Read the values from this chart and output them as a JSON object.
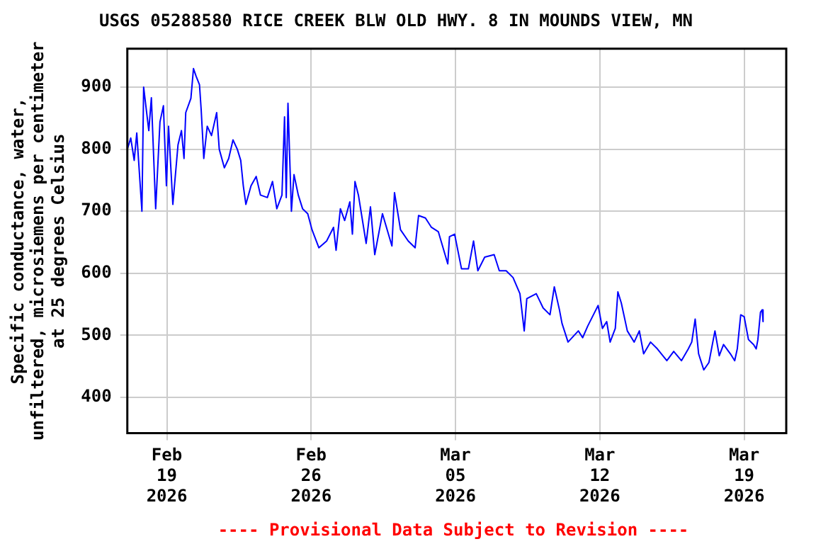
{
  "chart_data": {
    "type": "line",
    "title": "USGS 05288580 RICE CREEK BLW OLD HWY. 8 IN MOUNDS VIEW, MN",
    "ylabel": "Specific conductance, water,\nunfiltered, microsiemens per centimeter\nat 25 degrees Celsius",
    "annotations": [
      "---- Provisional Data Subject to Revision ----"
    ],
    "x": [
      "2026-02-17T02:00",
      "2026-02-17T06:00",
      "2026-02-17T10:00",
      "2026-02-17T13:00",
      "2026-02-17T19:00",
      "2026-02-17T21:00",
      "2026-02-18T03:00",
      "2026-02-18T06:00",
      "2026-02-18T11:00",
      "2026-02-18T16:00",
      "2026-02-18T20:00",
      "2026-02-18T23:30",
      "2026-02-19T02:00",
      "2026-02-19T07:00",
      "2026-02-19T13:00",
      "2026-02-19T17:00",
      "2026-02-19T20:00",
      "2026-02-19T22:00",
      "2026-02-20T04:00",
      "2026-02-20T07:00",
      "2026-02-20T10:00",
      "2026-02-20T14:00",
      "2026-02-20T16:00",
      "2026-02-20T19:00",
      "2026-02-20T23:00",
      "2026-02-21T04:00",
      "2026-02-21T10:00",
      "2026-02-21T13:00",
      "2026-02-21T19:00",
      "2026-02-22T00:00",
      "2026-02-22T05:00",
      "2026-02-22T10:00",
      "2026-02-22T14:00",
      "2026-02-22T17:00",
      "2026-02-22T20:00",
      "2026-02-23T02:00",
      "2026-02-23T08:00",
      "2026-02-23T13:00",
      "2026-02-23T21:00",
      "2026-02-24T03:00",
      "2026-02-24T08:00",
      "2026-02-24T14:00",
      "2026-02-24T17:00",
      "2026-02-24T19:00",
      "2026-02-24T21:00",
      "2026-02-25T01:00",
      "2026-02-25T04:00",
      "2026-02-25T09:00",
      "2026-02-25T14:00",
      "2026-02-25T20:00",
      "2026-02-26T01:00",
      "2026-02-26T09:00",
      "2026-02-26T18:00",
      "2026-02-27T02:00",
      "2026-02-27T05:00",
      "2026-02-27T10:00",
      "2026-02-27T15:00",
      "2026-02-27T21:00",
      "2026-02-28T00:00",
      "2026-02-28T03:00",
      "2026-02-28T07:00",
      "2026-02-28T16:00",
      "2026-02-28T21:00",
      "2026-03-01T02:00",
      "2026-03-01T11:00",
      "2026-03-01T22:00",
      "2026-03-02T01:00",
      "2026-03-02T08:00",
      "2026-03-02T17:00",
      "2026-03-03T01:00",
      "2026-03-03T05:00",
      "2026-03-03T13:00",
      "2026-03-03T20:00",
      "2026-03-04T04:00",
      "2026-03-04T15:00",
      "2026-03-04T17:00",
      "2026-03-04T23:00",
      "2026-03-05T07:00",
      "2026-03-05T15:00",
      "2026-03-05T21:00",
      "2026-03-06T02:00",
      "2026-03-06T10:00",
      "2026-03-06T21:00",
      "2026-03-07T03:00",
      "2026-03-07T11:00",
      "2026-03-07T19:00",
      "2026-03-08T03:00",
      "2026-03-08T08:00",
      "2026-03-08T11:00",
      "2026-03-08T22:00",
      "2026-03-09T06:00",
      "2026-03-09T14:00",
      "2026-03-09T19:00",
      "2026-03-10T01:00",
      "2026-03-10T04:00",
      "2026-03-10T11:00",
      "2026-03-10T23:00",
      "2026-03-11T04:00",
      "2026-03-11T10:00",
      "2026-03-11T18:00",
      "2026-03-11T22:00",
      "2026-03-12T03:00",
      "2026-03-12T08:00",
      "2026-03-12T12:00",
      "2026-03-12T18:00",
      "2026-03-12T21:00",
      "2026-03-13T01:00",
      "2026-03-13T08:00",
      "2026-03-13T16:00",
      "2026-03-13T22:00",
      "2026-03-14T03:00",
      "2026-03-14T11:00",
      "2026-03-14T19:00",
      "2026-03-15T06:00",
      "2026-03-15T14:00",
      "2026-03-15T23:00",
      "2026-03-16T07:00",
      "2026-03-16T11:00",
      "2026-03-16T15:00",
      "2026-03-16T19:00",
      "2026-03-17T01:00",
      "2026-03-17T07:00",
      "2026-03-17T14:00",
      "2026-03-17T19:00",
      "2026-03-18T00:00",
      "2026-03-18T08:00",
      "2026-03-18T13:00",
      "2026-03-18T16:00",
      "2026-03-18T20:00",
      "2026-03-19T00:00",
      "2026-03-19T05:00",
      "2026-03-19T11:00",
      "2026-03-19T14:00",
      "2026-03-19T16:00",
      "2026-03-19T19:00",
      "2026-03-19T21:00",
      "2026-03-19T22:00"
    ],
    "series": [
      {
        "color": "#0000ff",
        "values": [
          800,
          818,
          782,
          826,
          700,
          900,
          830,
          883,
          704,
          844,
          870,
          741,
          837,
          711,
          807,
          830,
          785,
          859,
          882,
          930,
          918,
          904,
          863,
          785,
          837,
          822,
          859,
          800,
          770,
          785,
          815,
          800,
          782,
          741,
          711,
          741,
          756,
          726,
          722,
          748,
          704,
          726,
          852,
          722,
          874,
          700,
          759,
          726,
          704,
          696,
          670,
          641,
          652,
          674,
          637,
          704,
          685,
          715,
          663,
          748,
          726,
          648,
          707,
          630,
          696,
          644,
          730,
          670,
          652,
          641,
          693,
          689,
          674,
          667,
          615,
          659,
          663,
          607,
          607,
          652,
          604,
          626,
          630,
          604,
          604,
          593,
          567,
          507,
          559,
          567,
          544,
          533,
          578,
          541,
          519,
          489,
          507,
          496,
          515,
          537,
          548,
          511,
          522,
          489,
          511,
          570,
          552,
          507,
          489,
          507,
          470,
          489,
          478,
          459,
          474,
          459,
          478,
          489,
          526,
          470,
          444,
          456,
          507,
          467,
          485,
          470,
          459,
          478,
          533,
          530,
          493,
          485,
          478,
          493,
          537,
          541,
          522
        ]
      }
    ],
    "xlim": [
      "2026-02-17T02:00",
      "2026-03-21T01:00"
    ],
    "xticks": [
      {
        "value": "2026-02-19",
        "label": "Feb\n19\n2026"
      },
      {
        "value": "2026-02-26",
        "label": "Feb\n26\n2026"
      },
      {
        "value": "2026-03-05",
        "label": "Mar\n05\n2026"
      },
      {
        "value": "2026-03-12",
        "label": "Mar\n12\n2026"
      },
      {
        "value": "2026-03-19",
        "label": "Mar\n19\n2026"
      }
    ],
    "ylim": [
      342,
      962
    ],
    "yticks": [
      400,
      500,
      600,
      700,
      800,
      900
    ],
    "grid": true,
    "marker": "none",
    "line_style": "solid"
  }
}
